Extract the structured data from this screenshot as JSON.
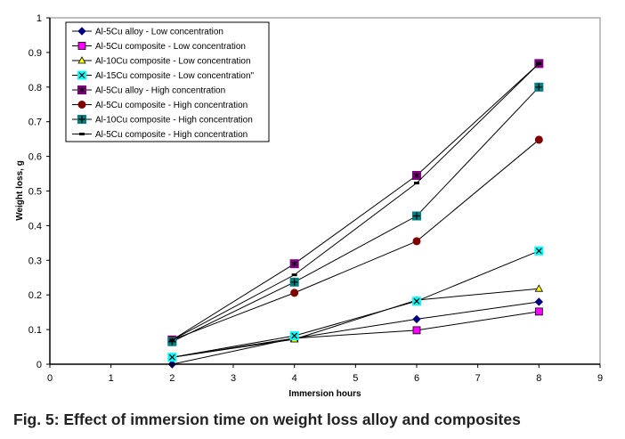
{
  "caption": "Fig. 5: Effect of immersion time on weight loss alloy and composites",
  "chart_data": {
    "type": "line",
    "title": "",
    "xlabel": "Immersion hours",
    "ylabel": "Weight loss, g",
    "xlim": [
      0,
      9
    ],
    "ylim": [
      0,
      1
    ],
    "xticks": [
      0,
      1,
      2,
      3,
      4,
      5,
      6,
      7,
      8,
      9
    ],
    "yticks": [
      0,
      0.1,
      0.2,
      0.3,
      0.4,
      0.5,
      0.6,
      0.7,
      0.8,
      0.9,
      1
    ],
    "ytick_labels": [
      "0",
      "0.1",
      "0.2",
      "0.3",
      "0.4",
      "0.5",
      "0.6",
      "0.7",
      "0.8",
      "0.9",
      "1"
    ],
    "grid": false,
    "legend_position": "top-left (inside)",
    "x": [
      2,
      4,
      6,
      8
    ],
    "series": [
      {
        "name": "Al-5Cu alloy - Low concentration",
        "values": [
          0.0,
          0.075,
          0.13,
          0.18
        ],
        "marker": "diamond",
        "color": "#000080"
      },
      {
        "name": "Al-5Cu composite - Low concentration",
        "values": [
          0.02,
          0.075,
          0.098,
          0.152
        ],
        "marker": "square",
        "color": "#FF00FF"
      },
      {
        "name": "Al-10Cu composite - Low concentration",
        "values": [
          0.02,
          0.072,
          0.185,
          0.218
        ],
        "marker": "triangle",
        "color": "#FFFF00"
      },
      {
        "name": "Al-15Cu composite - Low concentration\"",
        "values": [
          0.02,
          0.082,
          0.182,
          0.327
        ],
        "marker": "x-square",
        "color": "#00FFFF"
      },
      {
        "name": "Al-5Cu alloy - High concentration",
        "values": [
          0.07,
          0.29,
          0.545,
          0.868
        ],
        "marker": "star-square",
        "color": "#800080"
      },
      {
        "name": "Al-5Cu composite - High concentration",
        "values": [
          0.07,
          0.206,
          0.355,
          0.648
        ],
        "marker": "circle",
        "color": "#800000"
      },
      {
        "name": "Al-10Cu composite - High concentration",
        "values": [
          0.065,
          0.237,
          0.428,
          0.8
        ],
        "marker": "plus-square",
        "color": "#008080"
      },
      {
        "name": "Al-5Cu composite - High concentration",
        "values": [
          0.07,
          0.258,
          0.523,
          0.868
        ],
        "marker": "dash",
        "color": "#000000"
      }
    ]
  }
}
